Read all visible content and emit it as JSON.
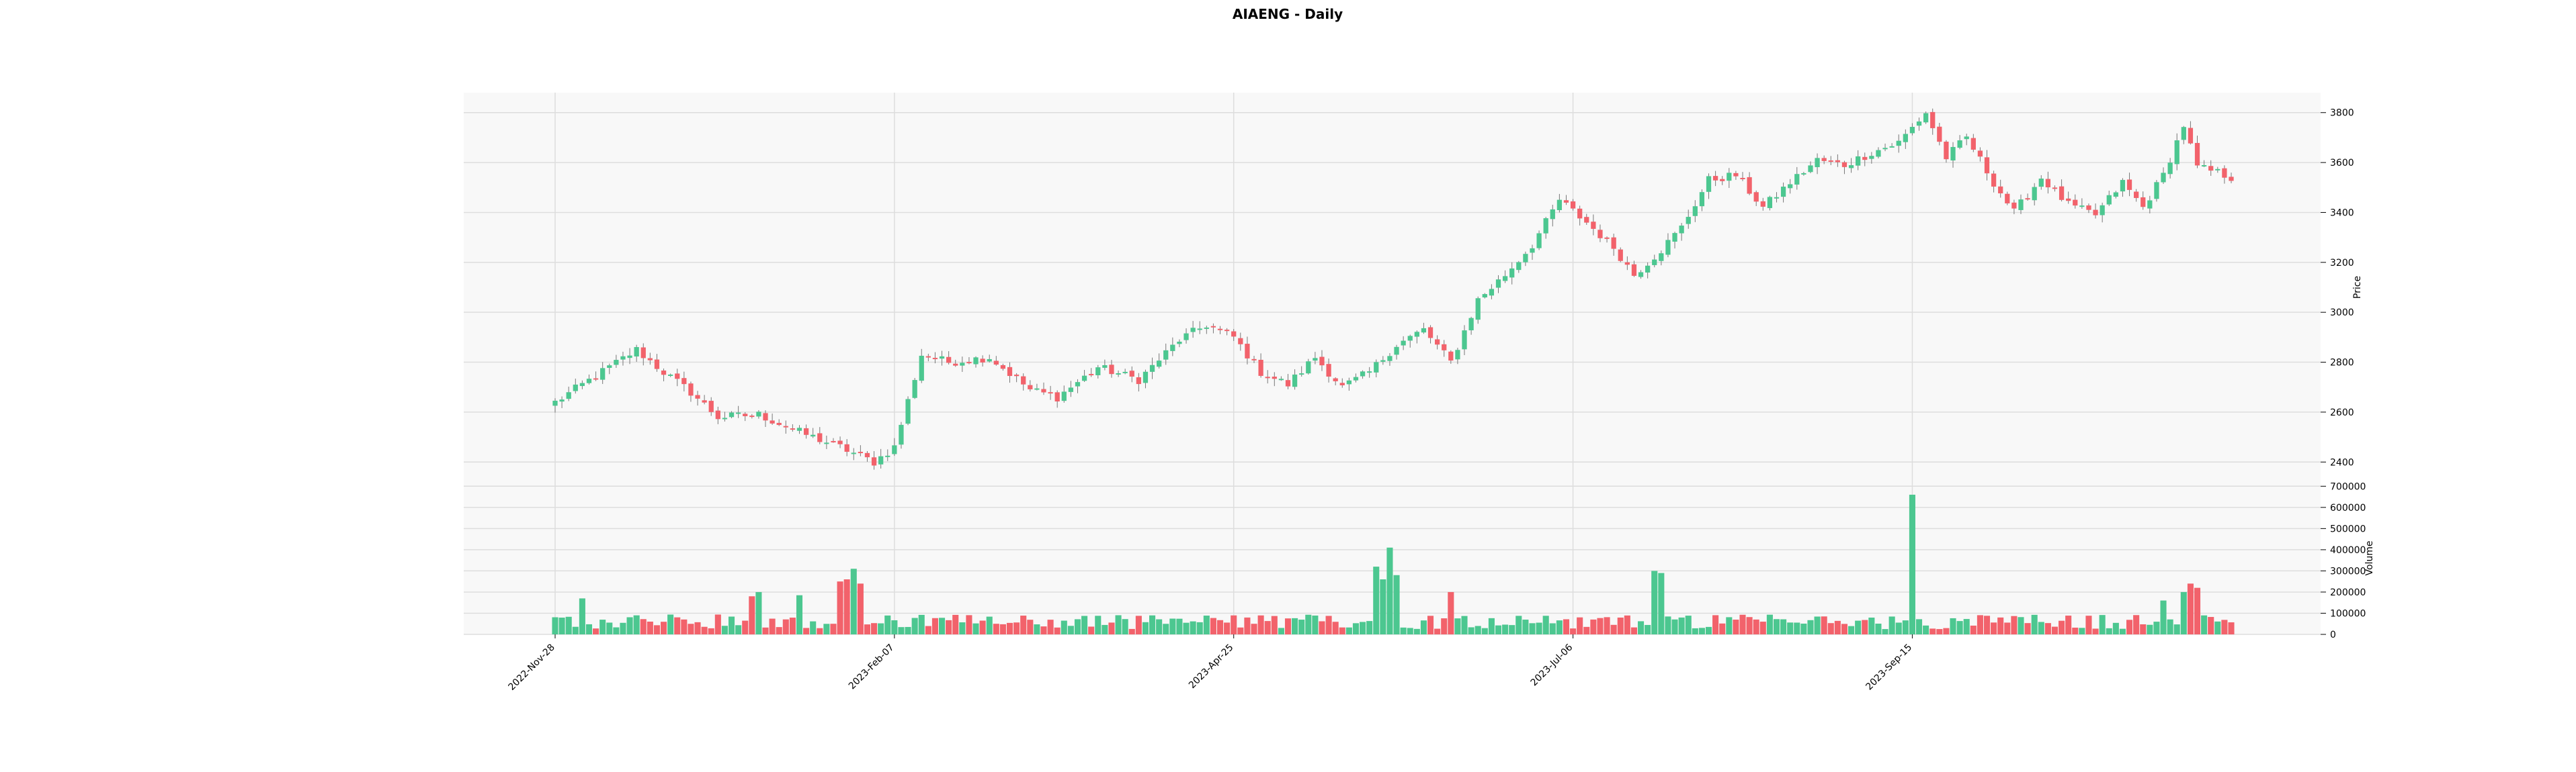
{
  "chart_data": {
    "type": "candlestick",
    "title": "AIAENG - Daily",
    "price_panel": {
      "ylabel": "Price",
      "ylim": [
        2320,
        3880
      ],
      "yticks": [
        2400,
        2600,
        2800,
        3000,
        3200,
        3400,
        3600,
        3800
      ]
    },
    "volume_panel": {
      "ylabel": "Volume",
      "ylim": [
        0,
        720000
      ],
      "yticks": [
        0,
        100000,
        200000,
        300000,
        400000,
        500000,
        600000,
        700000
      ],
      "ytick_labels": [
        "0",
        "100000",
        "200000",
        "300000",
        "400000",
        "500000",
        "600000",
        "700000"
      ]
    },
    "x_tick_labels": [
      "2022-Nov-28",
      "2023-Feb-07",
      "2023-Apr-25",
      "2023-Jul-06",
      "2023-Sep-15"
    ],
    "x_tick_indices": [
      0,
      50,
      100,
      150,
      200
    ],
    "n_bars": 248,
    "grid": true,
    "colors": {
      "up": "#4cc790",
      "down": "#f2626b",
      "wick": "#777777",
      "panel_bg": "#f8f8f8",
      "grid": "#dddddd"
    },
    "close_anchors": [
      [
        0,
        2640
      ],
      [
        8,
        2780
      ],
      [
        12,
        2850
      ],
      [
        16,
        2760
      ],
      [
        20,
        2680
      ],
      [
        24,
        2580
      ],
      [
        30,
        2590
      ],
      [
        36,
        2520
      ],
      [
        42,
        2460
      ],
      [
        47,
        2400
      ],
      [
        50,
        2460
      ],
      [
        54,
        2830
      ],
      [
        58,
        2800
      ],
      [
        64,
        2820
      ],
      [
        70,
        2690
      ],
      [
        74,
        2660
      ],
      [
        80,
        2780
      ],
      [
        86,
        2730
      ],
      [
        92,
        2890
      ],
      [
        96,
        2950
      ],
      [
        100,
        2900
      ],
      [
        104,
        2760
      ],
      [
        108,
        2710
      ],
      [
        112,
        2820
      ],
      [
        116,
        2700
      ],
      [
        120,
        2760
      ],
      [
        124,
        2870
      ],
      [
        128,
        2930
      ],
      [
        132,
        2800
      ],
      [
        136,
        3050
      ],
      [
        140,
        3150
      ],
      [
        144,
        3270
      ],
      [
        148,
        3450
      ],
      [
        152,
        3360
      ],
      [
        156,
        3260
      ],
      [
        159,
        3150
      ],
      [
        163,
        3250
      ],
      [
        166,
        3340
      ],
      [
        170,
        3530
      ],
      [
        174,
        3550
      ],
      [
        178,
        3420
      ],
      [
        182,
        3520
      ],
      [
        186,
        3610
      ],
      [
        190,
        3590
      ],
      [
        194,
        3640
      ],
      [
        198,
        3680
      ],
      [
        202,
        3800
      ],
      [
        205,
        3620
      ],
      [
        208,
        3700
      ],
      [
        212,
        3520
      ],
      [
        215,
        3400
      ],
      [
        219,
        3540
      ],
      [
        223,
        3430
      ],
      [
        227,
        3390
      ],
      [
        231,
        3520
      ],
      [
        234,
        3420
      ],
      [
        237,
        3550
      ],
      [
        240,
        3750
      ],
      [
        242,
        3580
      ],
      [
        245,
        3560
      ],
      [
        247,
        3540
      ]
    ],
    "volume_spikes": [
      [
        4,
        170000
      ],
      [
        29,
        180000
      ],
      [
        30,
        200000
      ],
      [
        36,
        185000
      ],
      [
        42,
        250000
      ],
      [
        43,
        260000
      ],
      [
        44,
        310000
      ],
      [
        45,
        240000
      ],
      [
        121,
        320000
      ],
      [
        122,
        260000
      ],
      [
        123,
        410000
      ],
      [
        124,
        280000
      ],
      [
        132,
        200000
      ],
      [
        162,
        300000
      ],
      [
        163,
        290000
      ],
      [
        200,
        660000
      ],
      [
        237,
        160000
      ],
      [
        240,
        200000
      ],
      [
        241,
        240000
      ],
      [
        242,
        220000
      ]
    ]
  }
}
